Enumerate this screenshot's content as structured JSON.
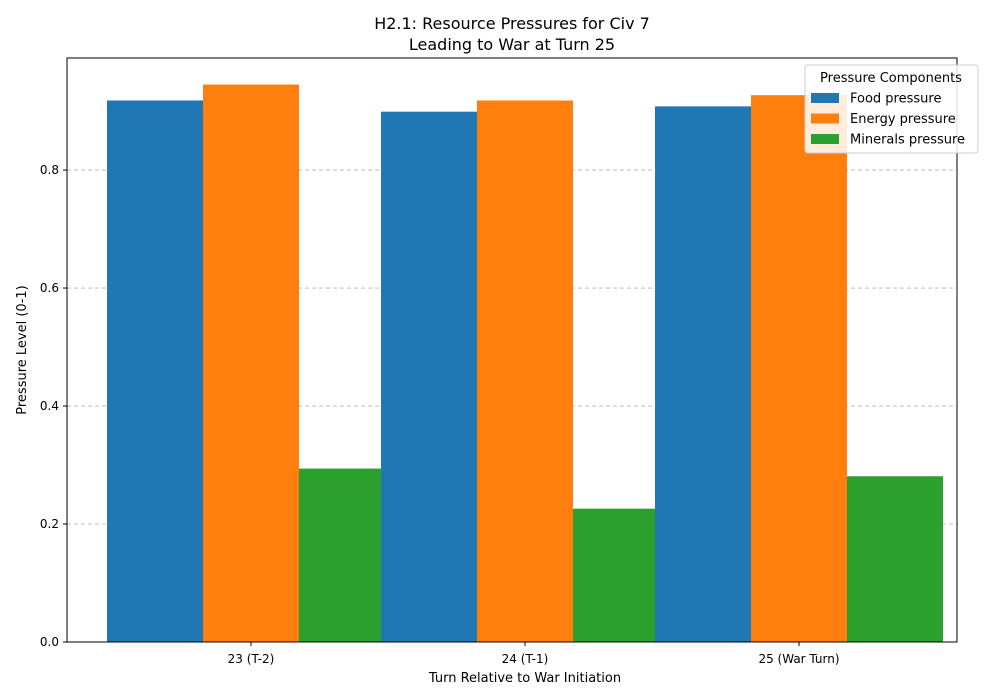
{
  "chart_data": {
    "type": "bar",
    "title": [
      "H2.1: Resource Pressures for Civ 7",
      "Leading to War at Turn 25"
    ],
    "xlabel": "Turn Relative to War Initiation",
    "ylabel": "Pressure Level (0-1)",
    "categories": [
      "23 (T-2)",
      "24 (T-1)",
      "25 (War Turn)"
    ],
    "series": [
      {
        "name": "Food pressure",
        "color": "#1f77b4",
        "values": [
          0.918,
          0.899,
          0.908
        ]
      },
      {
        "name": "Energy pressure",
        "color": "#ff7f0e",
        "values": [
          0.945,
          0.918,
          0.927
        ]
      },
      {
        "name": "Minerals pressure",
        "color": "#2ca02c",
        "values": [
          0.294,
          0.226,
          0.281
        ]
      }
    ],
    "ylim": [
      0,
      0.99
    ],
    "yticks": [
      "0.0",
      "0.2",
      "0.4",
      "0.6",
      "0.8"
    ],
    "grid": "y-dashed",
    "legend": {
      "title": "Pressure Components",
      "placement": "top-right"
    }
  }
}
